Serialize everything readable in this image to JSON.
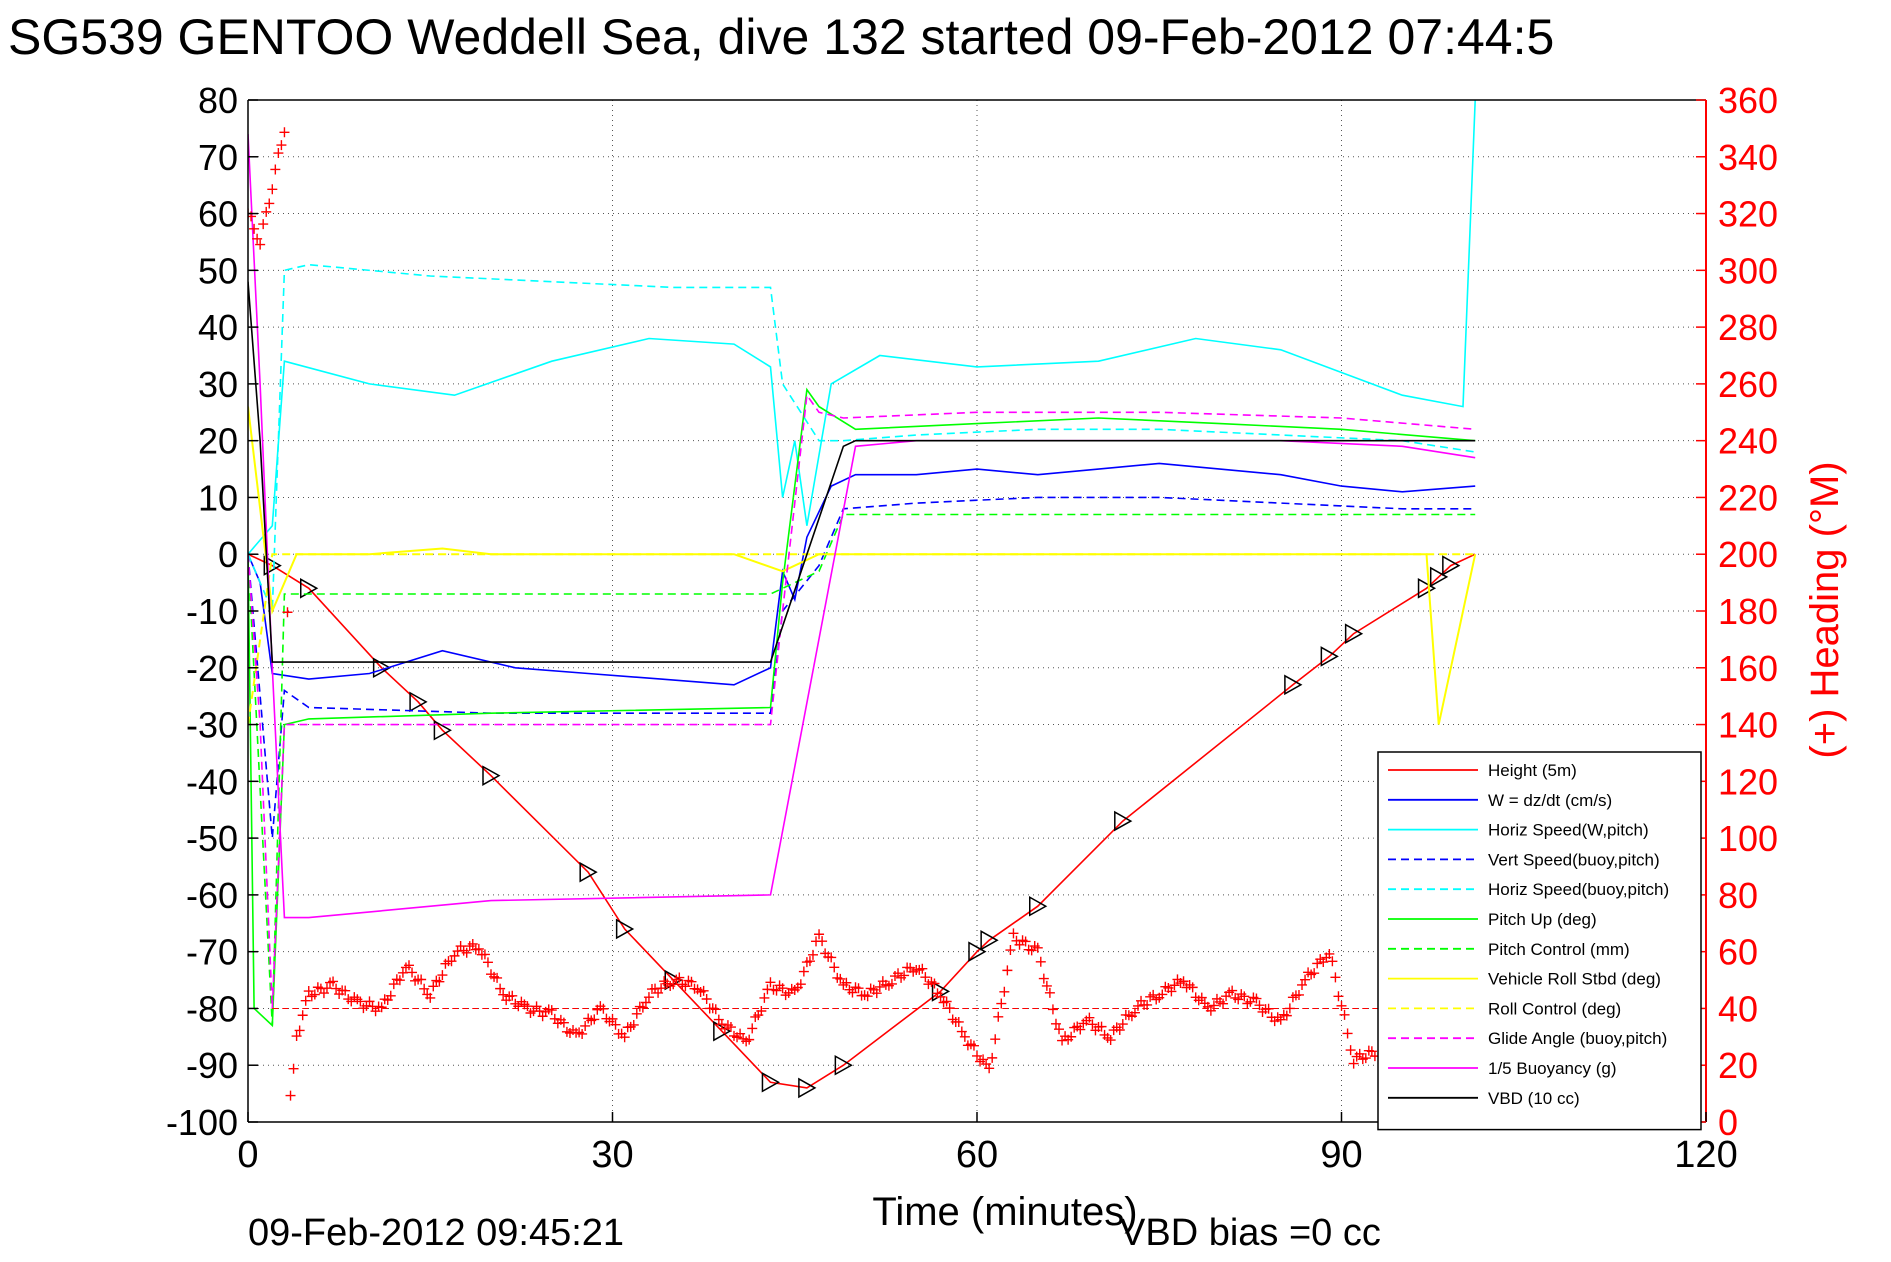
{
  "title": "SG539 GENTOO Weddell Sea, dive 132 started 09-Feb-2012 07:44:5",
  "footer": {
    "timestamp": "09-Feb-2012 09:45:21",
    "vbd_bias": "VBD bias =0 cc"
  },
  "colors": {
    "red": "#ff0000",
    "blue": "#0000ff",
    "cyan": "#00ffff",
    "green": "#00ff00",
    "yellow": "#ffff00",
    "magenta": "#ff00ff",
    "black": "#000000"
  },
  "chart_data": {
    "type": "line",
    "xlabel": "Time (minutes)",
    "ylabel_right": "(+) Heading (°M)",
    "xlim": [
      0,
      120
    ],
    "ylim_left": [
      -100,
      80
    ],
    "ylim_right": [
      0,
      360
    ],
    "xticks": [
      0,
      30,
      60,
      90,
      120
    ],
    "yticks_left": [
      80,
      70,
      60,
      50,
      40,
      30,
      20,
      10,
      0,
      -10,
      -20,
      -30,
      -40,
      -50,
      -60,
      -70,
      -80,
      -90,
      -100
    ],
    "yticks_right": [
      360,
      340,
      320,
      300,
      280,
      260,
      240,
      220,
      200,
      180,
      160,
      140,
      120,
      100,
      80,
      60,
      40,
      20,
      0
    ],
    "grid": true,
    "legend_position": "bottom-right",
    "series": [
      {
        "name": "Height (5m)",
        "color": "#ff0000",
        "style": "solid",
        "marker": "triangle",
        "x": [
          0,
          2,
          5,
          11,
          14,
          16,
          20,
          28,
          31,
          35,
          39,
          43,
          46,
          49,
          57,
          60,
          61,
          65,
          72,
          86,
          89,
          91,
          97,
          98,
          99,
          101
        ],
        "y": [
          0,
          -2,
          -6,
          -20,
          -26,
          -31,
          -39,
          -56,
          -66,
          -75,
          -84,
          -93,
          -94,
          -90,
          -77,
          -70,
          -68,
          -62,
          -47,
          -23,
          -18,
          -14,
          -6,
          -4,
          -2,
          0
        ]
      },
      {
        "name": "W = dz/dt (cm/s)",
        "color": "#0000ff",
        "style": "solid",
        "x": [
          0,
          1,
          2,
          5,
          10,
          16,
          22,
          28,
          34,
          40,
          43,
          44,
          45,
          46,
          48,
          50,
          55,
          60,
          65,
          70,
          75,
          80,
          85,
          90,
          95,
          101
        ],
        "y": [
          0,
          -5,
          -21,
          -22,
          -21,
          -17,
          -20,
          -21,
          -22,
          -23,
          -20,
          -3,
          -8,
          3,
          12,
          14,
          14,
          15,
          14,
          15,
          16,
          15,
          14,
          12,
          11,
          12
        ]
      },
      {
        "name": "Horiz Speed(W,pitch)",
        "color": "#00ffff",
        "style": "solid",
        "x": [
          0,
          2,
          3,
          10,
          17,
          25,
          33,
          40,
          43,
          44,
          45,
          46,
          48,
          52,
          60,
          70,
          78,
          85,
          90,
          95,
          100,
          101
        ],
        "y": [
          0,
          5,
          34,
          30,
          28,
          34,
          38,
          37,
          33,
          10,
          20,
          5,
          30,
          35,
          33,
          34,
          38,
          36,
          32,
          28,
          26,
          80
        ]
      },
      {
        "name": "Vert Speed(buoy,pitch)",
        "color": "#0000ff",
        "style": "dashed",
        "x": [
          0,
          2,
          3,
          5,
          20,
          43,
          44,
          47,
          49,
          55,
          65,
          75,
          85,
          95,
          101
        ],
        "y": [
          0,
          -50,
          -24,
          -27,
          -28,
          -28,
          -10,
          -2,
          8,
          9,
          10,
          10,
          9,
          8,
          8
        ]
      },
      {
        "name": "Horiz Speed(buoy,pitch)",
        "color": "#00ffff",
        "style": "dashed",
        "x": [
          0,
          2,
          3,
          5,
          15,
          25,
          35,
          43,
          44,
          47,
          49,
          55,
          65,
          75,
          85,
          95,
          101
        ],
        "y": [
          0,
          -10,
          50,
          51,
          49,
          48,
          47,
          47,
          30,
          20,
          20,
          21,
          22,
          22,
          21,
          20,
          18
        ]
      },
      {
        "name": "Pitch Up (deg)",
        "color": "#00ff00",
        "style": "solid",
        "x": [
          0,
          0.5,
          2,
          3,
          5,
          20,
          43,
          44,
          46,
          47,
          50,
          60,
          70,
          80,
          90,
          101
        ],
        "y": [
          0,
          -80,
          -83,
          -30,
          -29,
          -28,
          -27,
          -5,
          29,
          26,
          22,
          23,
          24,
          23,
          22,
          20
        ]
      },
      {
        "name": "Pitch Control (mm)",
        "color": "#00ff00",
        "style": "dashed",
        "x": [
          0,
          2,
          3,
          5,
          20,
          43,
          47,
          49,
          60,
          75,
          90,
          101
        ],
        "y": [
          0,
          -83,
          -7,
          -7,
          -7,
          -7,
          -3,
          7,
          7,
          7,
          7,
          7
        ]
      },
      {
        "name": "Vehicle Roll Stbd (deg)",
        "color": "#ffff00",
        "style": "solid",
        "x": [
          0,
          2,
          4,
          10,
          16,
          20,
          32,
          40,
          44,
          47,
          49,
          60,
          72,
          88,
          97,
          98,
          101
        ],
        "y": [
          26,
          -10,
          0,
          0,
          1,
          0,
          0,
          0,
          -3,
          0,
          0,
          0,
          0,
          0,
          0,
          -30,
          0
        ]
      },
      {
        "name": "Roll Control (deg)",
        "color": "#ffff00",
        "style": "dashed",
        "x": [
          0,
          2,
          4,
          30,
          44,
          46,
          50,
          70,
          90,
          101
        ],
        "y": [
          -30,
          0,
          0,
          0,
          0,
          0,
          0,
          0,
          0,
          0
        ]
      },
      {
        "name": "Glide Angle (buoy,pitch)",
        "color": "#ff00ff",
        "style": "dashed",
        "x": [
          0,
          1,
          2,
          3,
          5,
          20,
          43,
          44,
          46,
          47,
          49,
          60,
          75,
          90,
          101
        ],
        "y": [
          0,
          -30,
          -80,
          -30,
          -30,
          -30,
          -30,
          -10,
          28,
          25,
          24,
          25,
          25,
          24,
          22
        ]
      },
      {
        "name": "1/5 Buoyancy (g)",
        "color": "#ff00ff",
        "style": "solid",
        "x": [
          0,
          1,
          2,
          3,
          5,
          20,
          43,
          50,
          55,
          70,
          85,
          95,
          101
        ],
        "y": [
          74,
          30,
          -20,
          -64,
          -64,
          -61,
          -60,
          19,
          20,
          20,
          20,
          19,
          17
        ]
      },
      {
        "name": "VBD (10 cc)",
        "color": "#000000",
        "style": "solid",
        "x": [
          0,
          1,
          2,
          43,
          49,
          50,
          101
        ],
        "y": [
          48,
          20,
          -19,
          -19,
          19,
          20,
          20
        ]
      }
    ],
    "heading_series": {
      "name": "(+) Heading",
      "color": "#ff0000",
      "marker": "+",
      "axis": "right",
      "x": [
        0,
        1,
        2,
        3,
        3.5,
        4,
        5,
        7,
        9,
        11,
        13,
        15,
        17,
        19,
        21,
        23,
        25,
        27,
        29,
        31,
        33,
        35,
        37,
        39,
        41,
        43,
        45,
        47,
        49,
        51,
        53,
        55,
        57,
        59,
        61,
        63,
        65,
        67,
        69,
        71,
        73,
        75,
        77,
        79,
        81,
        83,
        85,
        87,
        89,
        91,
        93
      ],
      "y": [
        320,
        310,
        330,
        350,
        10,
        30,
        45,
        48,
        42,
        40,
        55,
        45,
        60,
        62,
        45,
        40,
        38,
        30,
        40,
        30,
        45,
        50,
        48,
        35,
        28,
        48,
        45,
        65,
        48,
        45,
        50,
        55,
        45,
        30,
        18,
        65,
        60,
        28,
        36,
        30,
        40,
        45,
        50,
        40,
        45,
        42,
        35,
        50,
        60,
        22,
        25
      ]
    }
  }
}
